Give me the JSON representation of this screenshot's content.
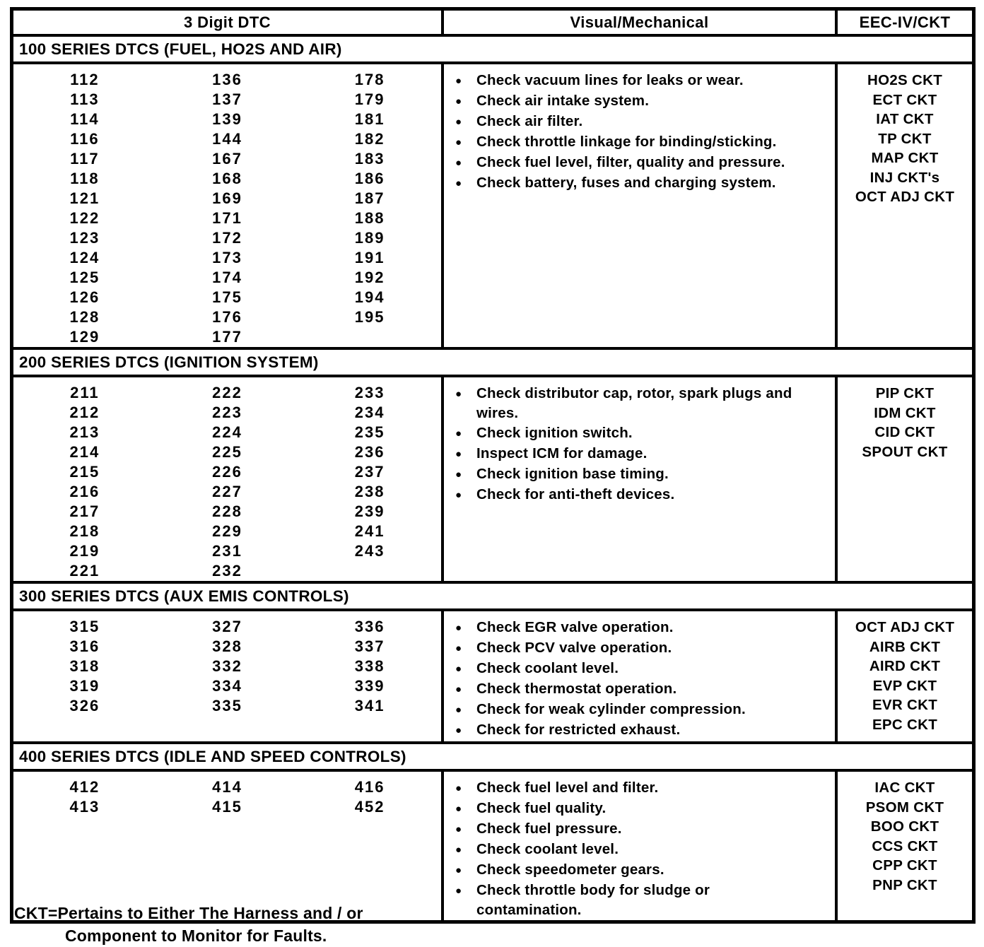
{
  "icons": {
    "bullet": "●"
  },
  "colors": {
    "ink": "#000000",
    "paper": "#ffffff"
  },
  "table": {
    "columns": [
      "3 Digit DTC",
      "Visual/Mechanical",
      "EEC-IV/CKT"
    ],
    "sections": [
      {
        "title": "100 SERIES DTCS (FUEL, HO2S AND AIR)",
        "dtc_col1": [
          "112",
          "113",
          "114",
          "116",
          "117",
          "118",
          "121",
          "122",
          "123",
          "124",
          "125",
          "126",
          "128",
          "129"
        ],
        "dtc_col2": [
          "136",
          "137",
          "139",
          "144",
          "167",
          "168",
          "169",
          "171",
          "172",
          "173",
          "174",
          "175",
          "176",
          "177"
        ],
        "dtc_col3": [
          "178",
          "179",
          "181",
          "182",
          "183",
          "186",
          "187",
          "188",
          "189",
          "191",
          "192",
          "194",
          "195"
        ],
        "checks": [
          "Check vacuum lines for leaks or wear.",
          "Check air intake system.",
          "Check air filter.",
          "Check throttle linkage for binding/sticking.",
          "Check fuel level, filter, quality and pressure.",
          "Check battery, fuses and charging system."
        ],
        "ckts": [
          "HO2S CKT",
          "ECT CKT",
          "IAT CKT",
          "TP CKT",
          "MAP CKT",
          "INJ CKT's",
          "OCT ADJ CKT"
        ]
      },
      {
        "title": "200 SERIES DTCS (IGNITION SYSTEM)",
        "dtc_col1": [
          "211",
          "212",
          "213",
          "214",
          "215",
          "216",
          "217",
          "218",
          "219",
          "221"
        ],
        "dtc_col2": [
          "222",
          "223",
          "224",
          "225",
          "226",
          "227",
          "228",
          "229",
          "231",
          "232"
        ],
        "dtc_col3": [
          "233",
          "234",
          "235",
          "236",
          "237",
          "238",
          "239",
          "241",
          "243"
        ],
        "checks": [
          "Check distributor cap, rotor, spark plugs and wires.",
          "Check ignition switch.",
          "Inspect ICM for damage.",
          "Check ignition base timing.",
          "Check for anti-theft devices."
        ],
        "ckts": [
          "PIP CKT",
          "IDM CKT",
          "CID CKT",
          "SPOUT CKT"
        ]
      },
      {
        "title": "300 SERIES DTCS (AUX EMIS CONTROLS)",
        "dtc_col1": [
          "315",
          "316",
          "318",
          "319",
          "326"
        ],
        "dtc_col2": [
          "327",
          "328",
          "332",
          "334",
          "335"
        ],
        "dtc_col3": [
          "336",
          "337",
          "338",
          "339",
          "341"
        ],
        "checks": [
          "Check EGR valve operation.",
          "Check PCV valve operation.",
          "Check coolant level.",
          "Check thermostat operation.",
          "Check for weak cylinder compression.",
          "Check for restricted exhaust."
        ],
        "ckts": [
          "OCT ADJ CKT",
          "AIRB CKT",
          "AIRD CKT",
          "EVP CKT",
          "EVR CKT",
          "EPC CKT"
        ]
      },
      {
        "title": "400 SERIES DTCS (IDLE AND SPEED CONTROLS)",
        "dtc_col1": [
          "412",
          "413"
        ],
        "dtc_col2": [
          "414",
          "415"
        ],
        "dtc_col3": [
          "416",
          "452"
        ],
        "checks": [
          "Check fuel level and filter.",
          "Check fuel quality.",
          "Check fuel pressure.",
          "Check coolant level.",
          "Check speedometer gears.",
          "Check throttle body for sludge or contamination."
        ],
        "ckts": [
          "IAC CKT",
          "PSOM CKT",
          "BOO CKT",
          "CCS CKT",
          "CPP CKT",
          "PNP CKT"
        ]
      }
    ]
  },
  "footnote": {
    "line1": "CKT=Pertains to Either The Harness and / or",
    "line2": "Component to Monitor for Faults."
  }
}
